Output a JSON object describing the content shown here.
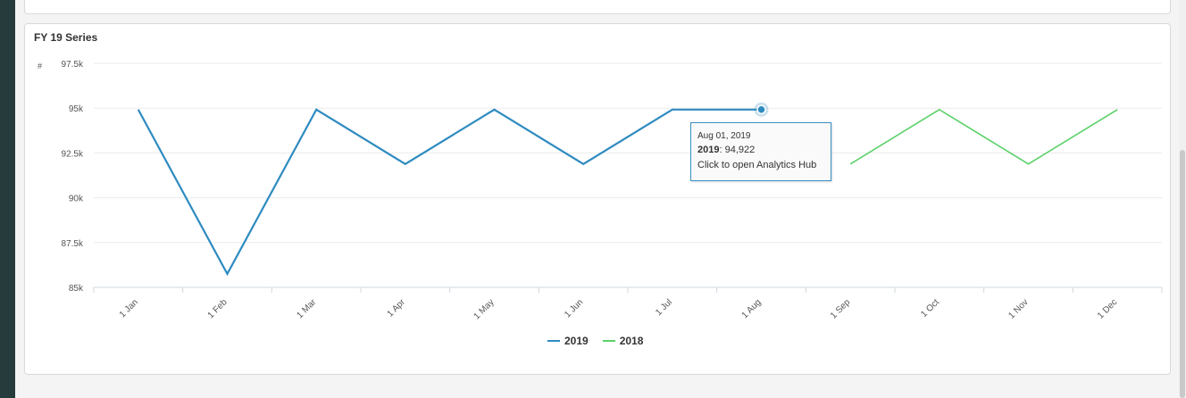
{
  "card": {
    "title": "FY 19 Series"
  },
  "chart_data": {
    "type": "line",
    "title": "FY 19 Series",
    "ylabel": "#",
    "xlabel": "",
    "categories": [
      "1 Jan",
      "1 Feb",
      "1 Mar",
      "1 Apr",
      "1 May",
      "1 Jun",
      "1 Jul",
      "1 Aug",
      "1 Sep",
      "1 Oct",
      "1 Nov",
      "1 Dec"
    ],
    "y_ticks": [
      "97.5k",
      "95k",
      "92.5k",
      "90k",
      "87.5k",
      "85k"
    ],
    "ylim": [
      85000,
      97500
    ],
    "y_step": 2500,
    "grid": true,
    "legend_position": "bottom",
    "series": [
      {
        "name": "2019",
        "color": "#2e8bc0",
        "values": [
          94922,
          85750,
          94922,
          91880,
          94922,
          91880,
          94922,
          94922,
          null,
          null,
          null,
          null
        ]
      },
      {
        "name": "2018",
        "color": "#5cd16a",
        "values": [
          null,
          null,
          null,
          null,
          null,
          null,
          null,
          null,
          91880,
          94922,
          91880,
          94922
        ]
      }
    ],
    "highlight": {
      "series": 0,
      "index": 7
    }
  },
  "tooltip": {
    "date": "Aug 01, 2019",
    "series": "2019",
    "value": ": 94,922",
    "action": "Click to open Analytics Hub"
  }
}
